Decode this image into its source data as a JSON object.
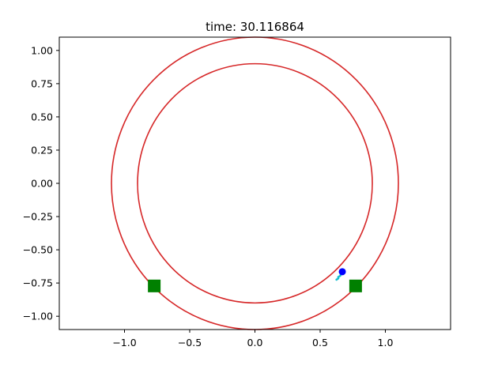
{
  "chart_data": {
    "type": "scatter",
    "title_prefix": "time: ",
    "time_value": "30.116864",
    "xlim": [
      -1.5,
      1.5
    ],
    "ylim": [
      -1.1,
      1.1
    ],
    "grid": false,
    "legend": "none",
    "x_ticks": [
      {
        "value": -1.0,
        "label": "−1.0"
      },
      {
        "value": -0.5,
        "label": "−0.5"
      },
      {
        "value": 0.0,
        "label": "0.0"
      },
      {
        "value": 0.5,
        "label": "0.5"
      },
      {
        "value": 1.0,
        "label": "1.0"
      }
    ],
    "y_ticks": [
      {
        "value": 1.0,
        "label": "1.00"
      },
      {
        "value": 0.75,
        "label": "0.75"
      },
      {
        "value": 0.5,
        "label": "0.50"
      },
      {
        "value": 0.25,
        "label": "0.25"
      },
      {
        "value": 0.0,
        "label": "0.00"
      },
      {
        "value": -0.25,
        "label": "−0.25"
      },
      {
        "value": -0.5,
        "label": "−0.50"
      },
      {
        "value": -0.75,
        "label": "−0.75"
      },
      {
        "value": -1.0,
        "label": "−1.00"
      }
    ],
    "track_circles": [
      {
        "center": [
          0,
          0
        ],
        "radius": 1.1,
        "color": "#d62728"
      },
      {
        "center": [
          0,
          0
        ],
        "radius": 0.9,
        "color": "#d62728"
      }
    ],
    "square_markers": [
      {
        "x": -0.772,
        "y": -0.772,
        "color": "#008000"
      },
      {
        "x": 0.772,
        "y": -0.772,
        "color": "#008000"
      }
    ],
    "point_marker": {
      "x": 0.67,
      "y": -0.665,
      "color": "#0000ff"
    },
    "trail": {
      "color": "#17becf",
      "points": [
        [
          0.625,
          -0.725
        ],
        [
          0.64,
          -0.715
        ],
        [
          0.638,
          -0.705
        ],
        [
          0.655,
          -0.695
        ],
        [
          0.66,
          -0.68
        ],
        [
          0.668,
          -0.67
        ]
      ]
    },
    "colors": {
      "axes": "#000000",
      "background": "#ffffff"
    }
  }
}
